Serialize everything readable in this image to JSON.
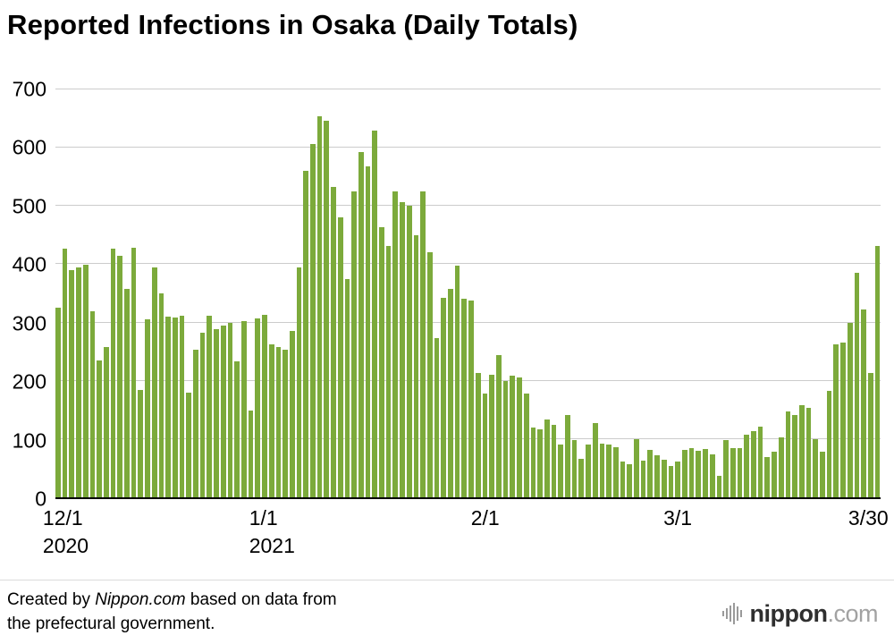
{
  "title": "Reported Infections in Osaka (Daily Totals)",
  "footer": {
    "created_by": "Created by ",
    "source_name": "Nippon.com",
    "based_on": " based on data from",
    "line2": "the prefectural government."
  },
  "logo": {
    "icon": "soundwave-bars-icon",
    "name": "nippon",
    "tld": ".com"
  },
  "chart_data": {
    "type": "bar",
    "title": "Reported Infections in Osaka (Daily Totals)",
    "bar_color": "#7caa3b",
    "gridline_color": "#cccccc",
    "grid": true,
    "ylim": [
      0,
      700
    ],
    "yticks": [
      0,
      100,
      200,
      300,
      400,
      500,
      600,
      700
    ],
    "x_axis_labels": [
      {
        "label": "12/1",
        "sublabel": "2020",
        "index": 0
      },
      {
        "label": "1/1",
        "sublabel": "2021",
        "index": 31
      },
      {
        "label": "2/1",
        "sublabel": "",
        "index": 62
      },
      {
        "label": "3/1",
        "sublabel": "",
        "index": 90
      },
      {
        "label": "3/30",
        "sublabel": "",
        "index": 119
      }
    ],
    "values": [
      325,
      427,
      390,
      394,
      399,
      320,
      235,
      258,
      427,
      415,
      357,
      429,
      185,
      306,
      395,
      350,
      310,
      309,
      311,
      180,
      254,
      283,
      312,
      289,
      294,
      299,
      233,
      302,
      149,
      307,
      313,
      262,
      258,
      254,
      286,
      394,
      560,
      607,
      654,
      647,
      532,
      480,
      374,
      525,
      592,
      568,
      629,
      464,
      431,
      525,
      506,
      501,
      450,
      525,
      421,
      273,
      343,
      357,
      397,
      341,
      338,
      214,
      178,
      211,
      244,
      199,
      209,
      205,
      178,
      119,
      116,
      134,
      125,
      90,
      142,
      98,
      66,
      90,
      128,
      92,
      91,
      86,
      62,
      57,
      100,
      63,
      82,
      72,
      65,
      54,
      62,
      81,
      84,
      80,
      83,
      73,
      37,
      99,
      84,
      84,
      108,
      113,
      121,
      69,
      78,
      103,
      147,
      141,
      158,
      153,
      100,
      79,
      183,
      262,
      266,
      300,
      386,
      323,
      213,
      432
    ]
  }
}
